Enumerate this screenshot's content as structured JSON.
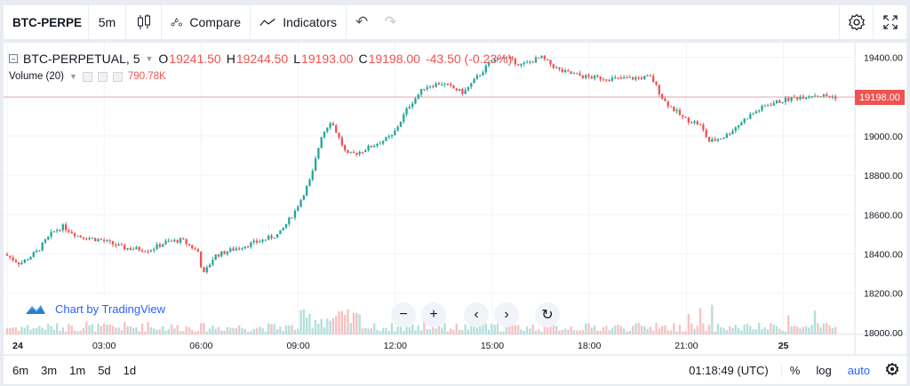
{
  "toolbar": {
    "symbol": "BTC-PERPE",
    "interval": "5m",
    "compare_label": "Compare",
    "indicators_label": "Indicators",
    "icons": [
      "candles-icon",
      "compare-icon",
      "indicators-icon",
      "undo-icon",
      "redo-icon",
      "settings-icon",
      "fullscreen-icon"
    ]
  },
  "legend": {
    "symbol": "BTC-PERPETUAL, 5",
    "open_label": "O",
    "open": "19241.50",
    "high_label": "H",
    "high": "19244.50",
    "low_label": "L",
    "low": "19193.00",
    "close_label": "C",
    "close": "19198.00",
    "change": "-43.50 (-0.23%)",
    "volume_label": "Volume (20)",
    "volume_value": "790.78K"
  },
  "watermark": {
    "label": "Chart by TradingView"
  },
  "price_axis": {
    "ticks": [
      "19400.00",
      "19200.00",
      "19000.00",
      "18800.00",
      "18600.00",
      "18400.00",
      "18200.00",
      "18000.00"
    ],
    "last_price": "19198.00"
  },
  "time_axis": {
    "ticks": [
      "24",
      "03:00",
      "06:00",
      "09:00",
      "12:00",
      "15:00",
      "18:00",
      "21:00",
      "25"
    ]
  },
  "bottombar": {
    "ranges": [
      "6m",
      "3m",
      "1m",
      "5d",
      "1d"
    ],
    "clock": "01:18:49 (UTC)",
    "percent_label": "%",
    "log_label": "log",
    "auto_label": "auto"
  },
  "colors": {
    "up": "#26a69a",
    "down": "#ef5350",
    "up_vol": "#b2dfdb",
    "down_vol": "#f7c1c0",
    "accent": "#2962ff"
  },
  "chart_data": {
    "type": "candlestick",
    "interval": "5m",
    "y_range": [
      17990,
      19475
    ],
    "x_range_hours": [
      0,
      26.1
    ],
    "price_path": [
      [
        0,
        18400
      ],
      [
        0.5,
        18350
      ],
      [
        1,
        18410
      ],
      [
        1.5,
        18510
      ],
      [
        1.8,
        18540
      ],
      [
        2.3,
        18490
      ],
      [
        3,
        18470
      ],
      [
        3.7,
        18430
      ],
      [
        4.5,
        18420
      ],
      [
        5,
        18460
      ],
      [
        5.5,
        18470
      ],
      [
        6,
        18410
      ],
      [
        6.15,
        18290
      ],
      [
        6.5,
        18390
      ],
      [
        7.2,
        18430
      ],
      [
        8,
        18470
      ],
      [
        8.5,
        18500
      ],
      [
        9,
        18620
      ],
      [
        9.5,
        18790
      ],
      [
        9.8,
        19000
      ],
      [
        10.1,
        19080
      ],
      [
        10.6,
        18900
      ],
      [
        11,
        18920
      ],
      [
        12,
        19000
      ],
      [
        12.5,
        19150
      ],
      [
        13,
        19250
      ],
      [
        13.5,
        19270
      ],
      [
        14.2,
        19220
      ],
      [
        15,
        19370
      ],
      [
        15.4,
        19410
      ],
      [
        16,
        19360
      ],
      [
        16.6,
        19400
      ],
      [
        17.2,
        19330
      ],
      [
        18,
        19300
      ],
      [
        19,
        19290
      ],
      [
        20,
        19300
      ],
      [
        20.4,
        19180
      ],
      [
        21,
        19090
      ],
      [
        21.5,
        19060
      ],
      [
        21.8,
        18970
      ],
      [
        22.3,
        19000
      ],
      [
        23,
        19100
      ],
      [
        23.6,
        19160
      ],
      [
        24.3,
        19190
      ],
      [
        25,
        19210
      ],
      [
        25.7,
        19198
      ]
    ],
    "volume_bars": 283,
    "last_price": 19198.0
  }
}
